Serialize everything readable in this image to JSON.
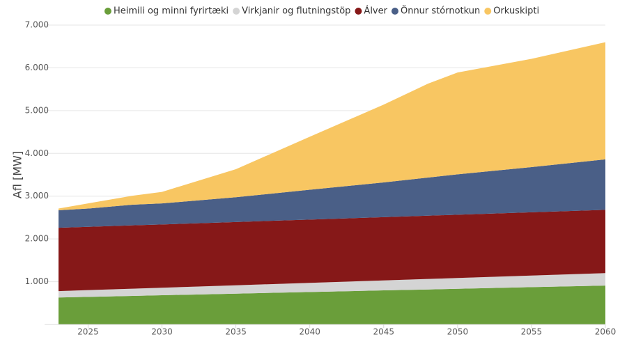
{
  "chart_data": {
    "type": "stacked_area",
    "ylabel": "Afl [MW]",
    "x": [
      2023,
      2025,
      2028,
      2030,
      2035,
      2040,
      2045,
      2048,
      2050,
      2055,
      2060
    ],
    "xlim": [
      2023,
      2060
    ],
    "xticks": [
      2025,
      2030,
      2035,
      2040,
      2045,
      2050,
      2055,
      2060
    ],
    "ylim": [
      0,
      7000
    ],
    "yticks": [
      {
        "value": 1000,
        "label": "1.000"
      },
      {
        "value": 2000,
        "label": "2.000"
      },
      {
        "value": 3000,
        "label": "3.000"
      },
      {
        "value": 4000,
        "label": "4.000"
      },
      {
        "value": 5000,
        "label": "5.000"
      },
      {
        "value": 6000,
        "label": "6.000"
      },
      {
        "value": 7000,
        "label": "7.000"
      }
    ],
    "grid": true,
    "legend": "top",
    "series": [
      {
        "name": "Heimili og minni fyrirtæki",
        "color": "#6a9e3a",
        "values": [
          630,
          645,
          668,
          683,
          721,
          759,
          797,
          819,
          834,
          872,
          910
        ]
      },
      {
        "name": "Virkjanir og flutningstöp",
        "color": "#d4d4d4",
        "values": [
          150,
          158,
          169,
          176,
          195,
          214,
          233,
          245,
          252,
          271,
          290
        ]
      },
      {
        "name": "Álver",
        "color": "#861818",
        "values": [
          1480,
          1480,
          1480,
          1480,
          1480,
          1480,
          1480,
          1480,
          1480,
          1480,
          1480
        ]
      },
      {
        "name": "Önnur stórnotkun",
        "color": "#4a5f87",
        "values": [
          410,
          427,
          483,
          491,
          579,
          697,
          810,
          890,
          944,
          1057,
          1180
        ]
      },
      {
        "name": "Orkuskipti",
        "color": "#f8c662",
        "values": [
          40,
          120,
          210,
          270,
          655,
          1240,
          1820,
          2196,
          2380,
          2530,
          2740
        ]
      }
    ]
  }
}
